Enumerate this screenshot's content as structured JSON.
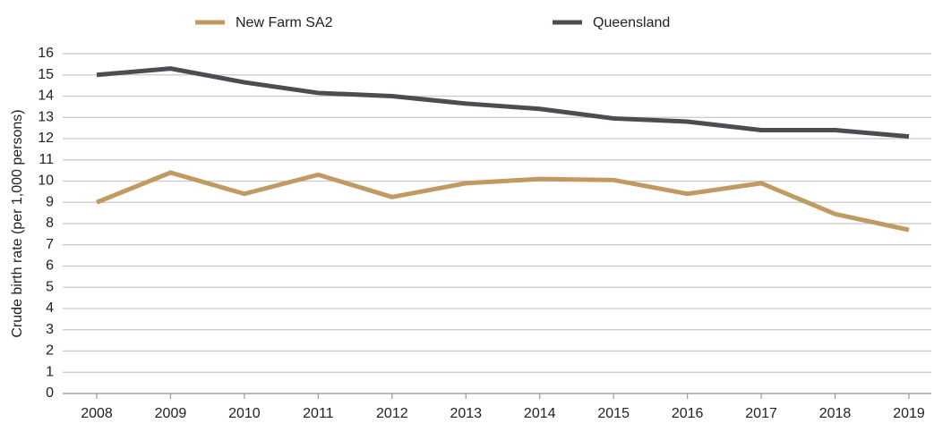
{
  "chart_data": {
    "type": "line",
    "y_label": "Crude birth rate (per 1,000 persons)",
    "categories": [
      "2008",
      "2009",
      "2010",
      "2011",
      "2012",
      "2013",
      "2014",
      "2015",
      "2016",
      "2017",
      "2018",
      "2019"
    ],
    "series": [
      {
        "name": "New Farm SA2",
        "color": "#c19a62",
        "values": [
          9.0,
          10.4,
          9.4,
          10.3,
          9.25,
          9.9,
          10.1,
          10.05,
          9.4,
          9.9,
          8.45,
          7.7
        ]
      },
      {
        "name": "Queensland",
        "color": "#4a4d52",
        "values": [
          15.0,
          15.3,
          14.65,
          14.15,
          14.0,
          13.65,
          13.4,
          12.95,
          12.8,
          12.4,
          12.4,
          12.1
        ]
      }
    ],
    "ylim": [
      0,
      16
    ],
    "yticks": [
      0,
      1,
      2,
      3,
      4,
      5,
      6,
      7,
      8,
      9,
      10,
      11,
      12,
      13,
      14,
      15,
      16
    ],
    "grid": true,
    "legend": "top"
  }
}
